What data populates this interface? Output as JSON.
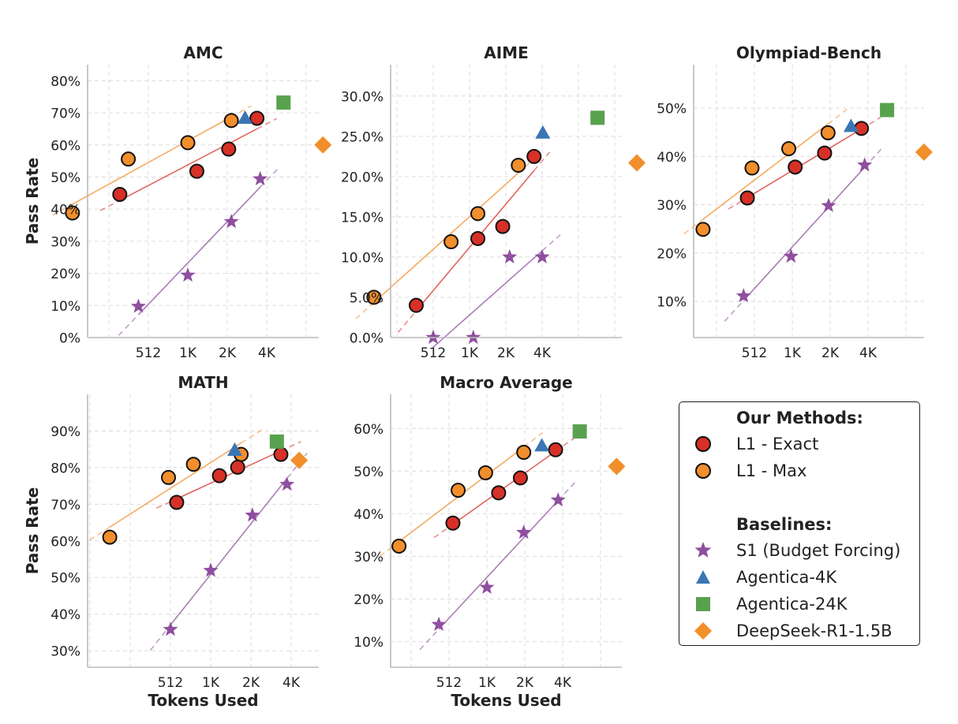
{
  "colors": {
    "exact": "#d73027",
    "max": "#f28e2b",
    "s1": "#8e4f9e",
    "agentica4k": "#3a76b5",
    "agentica24k": "#59a14f",
    "deepseek": "#f28e2b"
  },
  "legend": {
    "methods_heading": "Our Methods:",
    "baselines_heading": "Baselines:",
    "entries": [
      {
        "key": "exact",
        "label": "L1 - Exact",
        "marker": "circle"
      },
      {
        "key": "max",
        "label": "L1 - Max",
        "marker": "circle"
      },
      {
        "key": "s1",
        "label": "S1 (Budget Forcing)",
        "marker": "star"
      },
      {
        "key": "agentica4k",
        "label": "Agentica-4K",
        "marker": "triangle"
      },
      {
        "key": "agentica24k",
        "label": "Agentica-24K",
        "marker": "square"
      },
      {
        "key": "deepseek",
        "label": "DeepSeek-R1-1.5B",
        "marker": "diamond"
      }
    ]
  },
  "chart_data": [
    {
      "type": "scatter",
      "title": "AMC",
      "xlabel": "",
      "ylabel": "Pass Rate",
      "x_scale": "log2",
      "xticks": [
        512,
        1024,
        2048,
        4096
      ],
      "xtick_labels": [
        "512",
        "1K",
        "2K",
        "4K"
      ],
      "ylim": [
        0,
        85
      ],
      "yticks": [
        0,
        10,
        20,
        30,
        40,
        50,
        60,
        70,
        80
      ],
      "ytick_labels": [
        "0%",
        "10%",
        "20%",
        "30%",
        "40%",
        "50%",
        "60%",
        "70%",
        "80%"
      ],
      "grid": true,
      "series": [
        {
          "key": "max",
          "x": [
            135,
            360,
            1024,
            2200
          ],
          "y": [
            38.8,
            55.6,
            60.7,
            67.6
          ]
        },
        {
          "key": "exact",
          "x": [
            310,
            1200,
            2100,
            3450
          ],
          "y": [
            44.6,
            51.8,
            58.7,
            68.3
          ]
        },
        {
          "key": "s1",
          "x": [
            430,
            1024,
            2200,
            3650
          ],
          "y": [
            9.7,
            19.4,
            36.1,
            49.4
          ]
        },
        {
          "key": "agentica4k",
          "x": [
            2800
          ],
          "y": [
            68.3
          ]
        },
        {
          "key": "agentica24k",
          "x": [
            5500
          ],
          "y": [
            73.2
          ]
        },
        {
          "key": "deepseek",
          "x": [
            11000
          ],
          "y": [
            60.0
          ]
        }
      ]
    },
    {
      "type": "scatter",
      "title": "AIME",
      "xlabel": "",
      "ylabel": "",
      "x_scale": "log2",
      "xticks": [
        512,
        1024,
        2048,
        4096
      ],
      "xtick_labels": [
        "512",
        "1K",
        "2K",
        "4K"
      ],
      "ylim": [
        0,
        33.9
      ],
      "yticks": [
        0,
        5,
        10,
        15,
        20,
        25,
        30
      ],
      "ytick_labels": [
        "0.0%",
        "5.0%",
        "10.0%",
        "15.0%",
        "20.0%",
        "25.0%",
        "30.0%"
      ],
      "grid": true,
      "series": [
        {
          "key": "max",
          "x": [
            165,
            720,
            1200,
            2600
          ],
          "y": [
            5.0,
            11.9,
            15.4,
            21.4
          ]
        },
        {
          "key": "exact",
          "x": [
            370,
            1200,
            1930,
            3510
          ],
          "y": [
            4.0,
            12.3,
            13.8,
            22.5
          ]
        },
        {
          "key": "s1",
          "x": [
            512,
            1100,
            2200,
            4100
          ],
          "y": [
            0.0,
            0.0,
            10.0,
            10.0
          ]
        },
        {
          "key": "agentica4k",
          "x": [
            4150
          ],
          "y": [
            25.4
          ]
        },
        {
          "key": "agentica24k",
          "x": [
            11800
          ],
          "y": [
            27.3
          ]
        },
        {
          "key": "deepseek",
          "x": [
            25000
          ],
          "y": [
            21.7
          ]
        }
      ]
    },
    {
      "type": "scatter",
      "title": "Olympiad-Bench",
      "xlabel": "",
      "ylabel": "",
      "x_scale": "log2",
      "xticks": [
        512,
        1024,
        2048,
        4096
      ],
      "xtick_labels": [
        "512",
        "1K",
        "2K",
        "4K"
      ],
      "ylim": [
        2.5,
        59
      ],
      "yticks": [
        10,
        20,
        30,
        40,
        50
      ],
      "ytick_labels": [
        "10%",
        "20%",
        "30%",
        "40%",
        "50%"
      ],
      "grid": true,
      "series": [
        {
          "key": "max",
          "x": [
            200,
            490,
            960,
            1970
          ],
          "y": [
            24.9,
            37.6,
            41.6,
            44.9
          ]
        },
        {
          "key": "exact",
          "x": [
            450,
            1080,
            1850,
            3630
          ],
          "y": [
            31.4,
            37.8,
            40.7,
            45.8
          ]
        },
        {
          "key": "s1",
          "x": [
            420,
            1000,
            1990,
            3850
          ],
          "y": [
            11.1,
            19.3,
            29.8,
            38.2
          ]
        },
        {
          "key": "agentica4k",
          "x": [
            3000
          ],
          "y": [
            46.2
          ]
        },
        {
          "key": "agentica24k",
          "x": [
            5800
          ],
          "y": [
            49.6
          ]
        },
        {
          "key": "deepseek",
          "x": [
            11400
          ],
          "y": [
            40.9
          ]
        }
      ]
    },
    {
      "type": "scatter",
      "title": "MATH",
      "xlabel": "Tokens Used",
      "ylabel": "Pass Rate",
      "x_scale": "log2",
      "xticks": [
        512,
        1024,
        2048,
        4096
      ],
      "xtick_labels": [
        "512",
        "1K",
        "2K",
        "4K"
      ],
      "ylim": [
        25.5,
        100
      ],
      "yticks": [
        30,
        40,
        50,
        60,
        70,
        80,
        90
      ],
      "ytick_labels": [
        "30%",
        "40%",
        "50%",
        "60%",
        "70%",
        "80%",
        "90%"
      ],
      "grid": true,
      "series": [
        {
          "key": "max",
          "x": [
            180,
            495,
            760,
            1730
          ],
          "y": [
            61.0,
            77.3,
            80.9,
            83.6
          ]
        },
        {
          "key": "exact",
          "x": [
            570,
            1190,
            1630,
            3430
          ],
          "y": [
            70.5,
            77.8,
            80.1,
            83.6
          ]
        },
        {
          "key": "s1",
          "x": [
            512,
            1024,
            2100,
            3810
          ],
          "y": [
            35.8,
            51.9,
            67.0,
            75.4
          ]
        },
        {
          "key": "agentica4k",
          "x": [
            1550
          ],
          "y": [
            84.7
          ]
        },
        {
          "key": "agentica24k",
          "x": [
            3200
          ],
          "y": [
            87.1
          ]
        },
        {
          "key": "deepseek",
          "x": [
            4700
          ],
          "y": [
            82.0
          ]
        }
      ]
    },
    {
      "type": "scatter",
      "title": "Macro Average",
      "xlabel": "Tokens Used",
      "ylabel": "",
      "x_scale": "log2",
      "xticks": [
        512,
        1024,
        2048,
        4096
      ],
      "xtick_labels": [
        "512",
        "1K",
        "2K",
        "4K"
      ],
      "ylim": [
        4,
        68
      ],
      "yticks": [
        10,
        20,
        30,
        40,
        50,
        60
      ],
      "ytick_labels": [
        "10%",
        "20%",
        "30%",
        "40%",
        "50%",
        "60%"
      ],
      "grid": true,
      "series": [
        {
          "key": "max",
          "x": [
            205,
            605,
            1000,
            2010
          ],
          "y": [
            32.4,
            45.5,
            49.6,
            54.4
          ]
        },
        {
          "key": "exact",
          "x": [
            550,
            1270,
            1890,
            3600
          ],
          "y": [
            37.8,
            44.9,
            48.4,
            55.0
          ]
        },
        {
          "key": "s1",
          "x": [
            425,
            1024,
            2010,
            3770
          ],
          "y": [
            14.0,
            22.7,
            35.6,
            43.2
          ]
        },
        {
          "key": "agentica4k",
          "x": [
            2800
          ],
          "y": [
            55.9
          ]
        },
        {
          "key": "agentica24k",
          "x": [
            5600
          ],
          "y": [
            59.3
          ]
        },
        {
          "key": "deepseek",
          "x": [
            11000
          ],
          "y": [
            51.1
          ]
        }
      ]
    }
  ]
}
